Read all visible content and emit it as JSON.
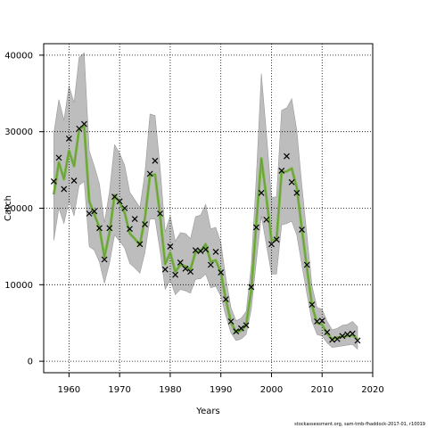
{
  "footer_text": "stockassessment.org, sam-tmb-fhaddock-2017-01, r10019",
  "colors": {
    "band": "#bdbdbd",
    "band_edge": "#9a9a9a",
    "estimate": "#7ab648",
    "estimate_core": "#6b9a3a",
    "observed": "#000000",
    "grid": "#000000"
  },
  "chart_data": {
    "type": "line",
    "title": "",
    "xlabel": "Years",
    "ylabel": "Catch",
    "xlim": [
      1955,
      2020
    ],
    "ylim": [
      -1500,
      41500
    ],
    "x_ticks": [
      1960,
      1970,
      1980,
      1990,
      2000,
      2010,
      2020
    ],
    "y_ticks": [
      0,
      10000,
      20000,
      30000,
      40000
    ],
    "grid": true,
    "grid_x": [
      1960,
      1970,
      1980,
      1990,
      2000,
      2010
    ],
    "grid_y": [
      0,
      10000,
      20000,
      30000,
      40000
    ],
    "series": [
      {
        "marker": "x",
        "x": [
          1957,
          1958,
          1959,
          1960,
          1961,
          1962,
          1963,
          1964,
          1965,
          1966,
          1967,
          1968,
          1969,
          1970,
          1971,
          1972,
          1973,
          1974,
          1975,
          1976,
          1977,
          1978,
          1979,
          1980,
          1981,
          1982,
          1983,
          1984,
          1985,
          1986,
          1987,
          1988,
          1989,
          1990,
          1991,
          1992,
          1993,
          1994,
          1995,
          1996,
          1997,
          1998,
          1999,
          2000,
          2001,
          2002,
          2003,
          2004,
          2005,
          2006,
          2007,
          2008,
          2009,
          2010,
          2011,
          2012,
          2013,
          2014,
          2015,
          2016,
          2017
        ],
        "values": [
          23500,
          26600,
          22500,
          29100,
          23600,
          30400,
          31000,
          19300,
          19600,
          17400,
          13300,
          17400,
          21500,
          20900,
          20000,
          17300,
          18600,
          15300,
          17900,
          24500,
          26200,
          19300,
          12000,
          15000,
          11300,
          12900,
          12100,
          11700,
          14500,
          14400,
          14600,
          12600,
          14300,
          11600,
          8100,
          5200,
          3900,
          4300,
          4700,
          9700,
          17500,
          22000,
          18500,
          15300,
          15900,
          24900,
          26800,
          23400,
          22000,
          17200,
          12600,
          7400,
          5200,
          5300,
          3800,
          2800,
          2900,
          3300,
          3500,
          3600,
          2700
        ]
      },
      {
        "marker": "line",
        "x": [
          1957,
          1958,
          1959,
          1960,
          1961,
          1962,
          1963,
          1964,
          1965,
          1966,
          1967,
          1968,
          1969,
          1970,
          1971,
          1972,
          1973,
          1974,
          1975,
          1976,
          1977,
          1978,
          1979,
          1980,
          1981,
          1982,
          1983,
          1984,
          1985,
          1986,
          1987,
          1988,
          1989,
          1990,
          1991,
          1992,
          1993,
          1994,
          1995,
          1996,
          1997,
          1998,
          1999,
          2000,
          2001,
          2002,
          2003,
          2004,
          2005,
          2006,
          2007,
          2008,
          2009,
          2010,
          2011,
          2012,
          2013,
          2014,
          2015,
          2016,
          2017
        ],
        "values": [
          21800,
          26000,
          23800,
          27500,
          25500,
          30300,
          30700,
          20900,
          19200,
          17500,
          13600,
          16800,
          21700,
          20700,
          19400,
          16700,
          16000,
          15200,
          18700,
          24300,
          24400,
          19000,
          12700,
          14200,
          11700,
          12600,
          12400,
          12000,
          14300,
          14400,
          15300,
          13000,
          13200,
          11600,
          8000,
          5100,
          3800,
          4000,
          4800,
          9200,
          18000,
          26500,
          21400,
          15800,
          15900,
          24700,
          24800,
          25200,
          22700,
          17300,
          12200,
          7300,
          5000,
          4800,
          3600,
          2900,
          3100,
          3200,
          3300,
          3400,
          2900
        ]
      },
      {
        "marker": "band",
        "x": [
          1957,
          1958,
          1959,
          1960,
          1961,
          1962,
          1963,
          1964,
          1965,
          1966,
          1967,
          1968,
          1969,
          1970,
          1971,
          1972,
          1973,
          1974,
          1975,
          1976,
          1977,
          1978,
          1979,
          1980,
          1981,
          1982,
          1983,
          1984,
          1985,
          1986,
          1987,
          1988,
          1989,
          1990,
          1991,
          1992,
          1993,
          1994,
          1995,
          1996,
          1997,
          1998,
          1999,
          2000,
          2001,
          2002,
          2003,
          2004,
          2005,
          2006,
          2007,
          2008,
          2009,
          2010,
          2011,
          2012,
          2013,
          2014,
          2015,
          2016,
          2017
        ],
        "lower": [
          15800,
          20000,
          18000,
          21000,
          19000,
          23000,
          23500,
          15000,
          14500,
          13000,
          10200,
          12800,
          16500,
          15700,
          14800,
          12800,
          12200,
          11500,
          14200,
          18600,
          18600,
          14400,
          9400,
          10600,
          8700,
          9400,
          9200,
          8900,
          10700,
          10800,
          11400,
          9600,
          9800,
          8500,
          5900,
          3700,
          2700,
          2900,
          3500,
          6700,
          13000,
          19000,
          15200,
          11400,
          11400,
          17800,
          18000,
          18300,
          16500,
          12600,
          8800,
          5200,
          3500,
          3300,
          2400,
          1800,
          1900,
          2000,
          2100,
          2200,
          1600
        ],
        "upper": [
          29800,
          34200,
          31500,
          36000,
          33800,
          39700,
          40300,
          27500,
          25500,
          23200,
          18100,
          22200,
          28300,
          27200,
          25600,
          22100,
          21100,
          20100,
          24600,
          32300,
          32100,
          25300,
          16900,
          19000,
          15700,
          16800,
          16700,
          16000,
          18900,
          19100,
          20500,
          17300,
          17500,
          15500,
          10800,
          7000,
          5300,
          5600,
          6500,
          12500,
          24000,
          37600,
          29800,
          21400,
          21500,
          32800,
          33100,
          34300,
          30200,
          23000,
          16500,
          9900,
          7000,
          6800,
          5200,
          4100,
          4300,
          4700,
          4800,
          5200,
          4500
        ]
      }
    ]
  }
}
